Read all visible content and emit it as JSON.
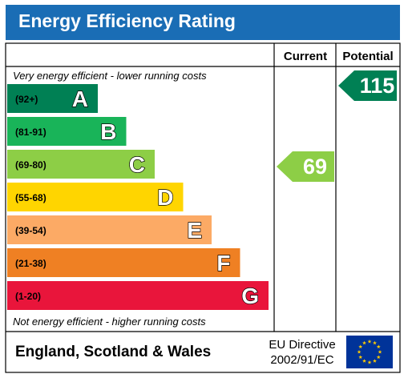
{
  "title": "Energy Efficiency Rating",
  "columns": {
    "current": "Current",
    "potential": "Potential"
  },
  "top_note": "Very energy efficient - lower running costs",
  "bottom_note": "Not energy efficient - higher running costs",
  "footer": {
    "region": "England, Scotland & Wales",
    "directive_line1": "EU Directive",
    "directive_line2": "2002/91/EC",
    "flag_icon": "eu-flag-icon"
  },
  "chart_data": {
    "type": "bar",
    "bands": [
      {
        "range": "(92+)",
        "letter": "A",
        "color": "#008054"
      },
      {
        "range": "(81-91)",
        "letter": "B",
        "color": "#19b459"
      },
      {
        "range": "(69-80)",
        "letter": "C",
        "color": "#8dce46"
      },
      {
        "range": "(55-68)",
        "letter": "D",
        "color": "#ffd500"
      },
      {
        "range": "(39-54)",
        "letter": "E",
        "color": "#fcaa65"
      },
      {
        "range": "(21-38)",
        "letter": "F",
        "color": "#ef8023"
      },
      {
        "range": "(1-20)",
        "letter": "G",
        "color": "#e9153b"
      }
    ],
    "current": {
      "value": 69,
      "band": "C",
      "color": "#8dce46"
    },
    "potential": {
      "value": 115,
      "band": "A",
      "color": "#008054"
    }
  }
}
